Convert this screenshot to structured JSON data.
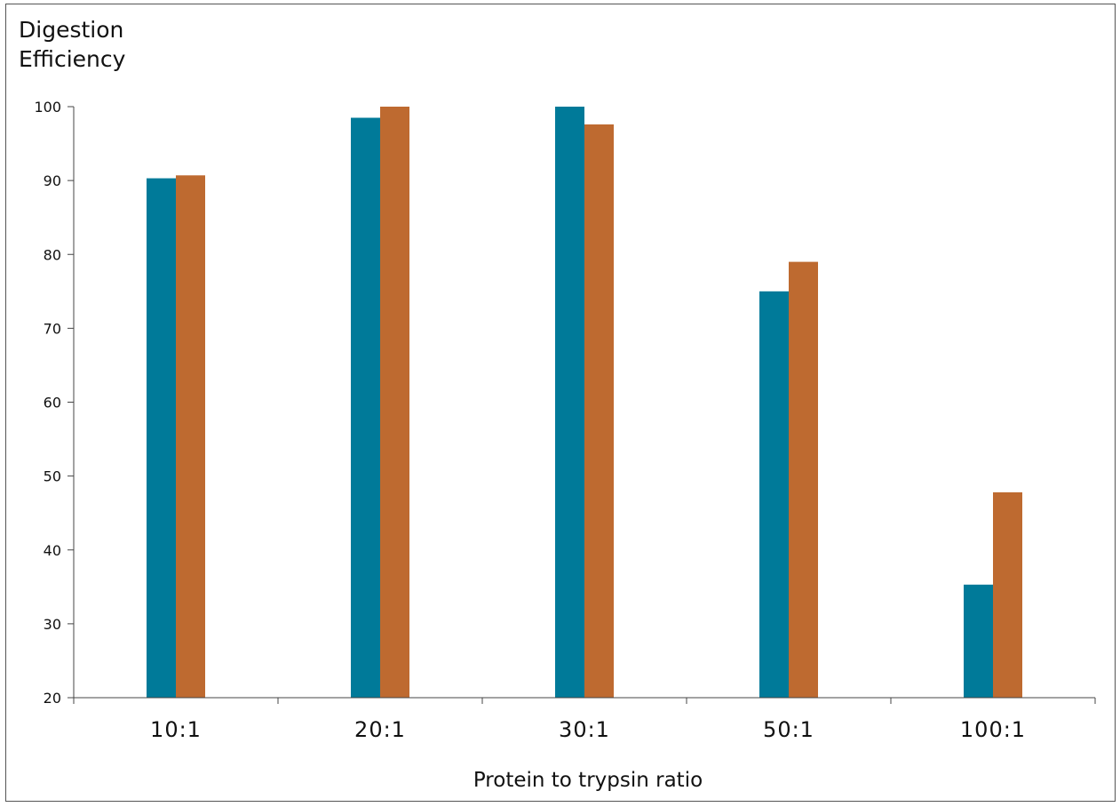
{
  "chart_data": {
    "type": "bar",
    "title": "",
    "ylabel_lines": [
      "Digestion",
      "Efficiency"
    ],
    "xlabel": "Protein to trypsin ratio",
    "categories": [
      "10:1",
      "20:1",
      "30:1",
      "50:1",
      "100:1"
    ],
    "ylim": [
      20,
      100
    ],
    "yticks": [
      20,
      30,
      40,
      50,
      60,
      70,
      80,
      90,
      100
    ],
    "grid": false,
    "legend": "none",
    "series": [
      {
        "color": "#007A99",
        "values": [
          90.3,
          98.5,
          100,
          75,
          35.3
        ]
      },
      {
        "color": "#BE6A30",
        "values": [
          90.7,
          100,
          97.6,
          79,
          47.8
        ]
      }
    ]
  }
}
